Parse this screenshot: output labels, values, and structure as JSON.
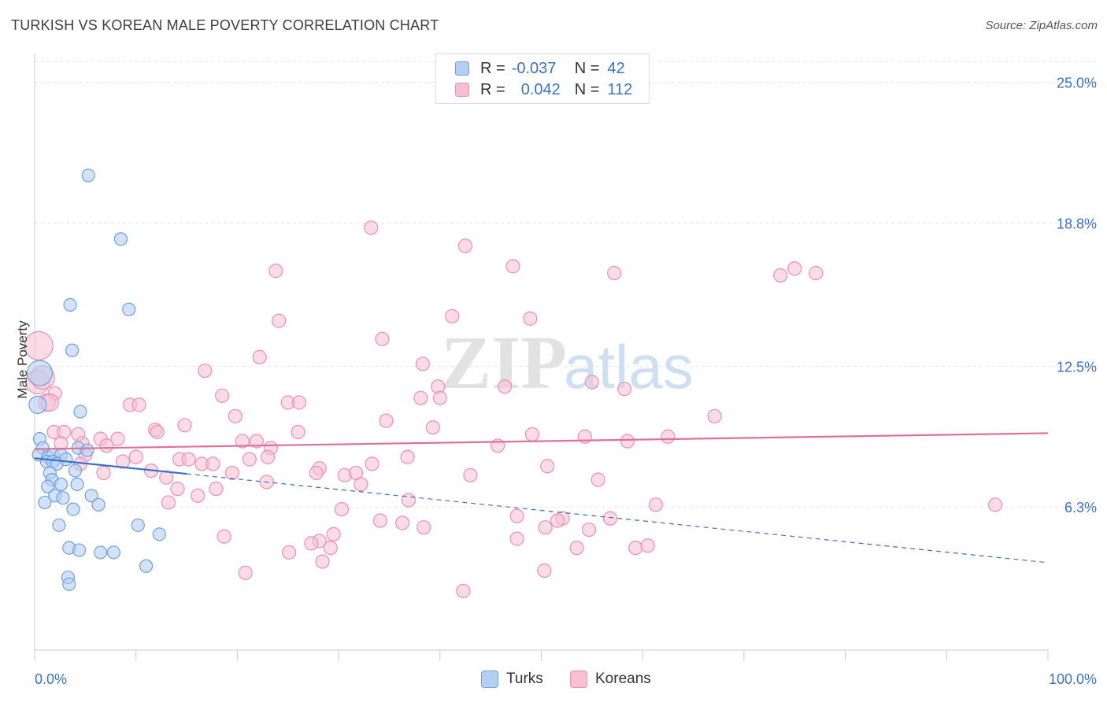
{
  "header": {
    "title": "TURKISH VS KOREAN MALE POVERTY CORRELATION CHART",
    "source": "Source: ZipAtlas.com"
  },
  "watermark": {
    "zip": "ZIP",
    "atlas": "atlas"
  },
  "stats": {
    "turks": {
      "r_label": "R =",
      "r_value": "-0.037",
      "n_label": "N =",
      "n_value": "42"
    },
    "koreans": {
      "r_label": "R =",
      "r_value": "0.042",
      "n_label": "N =",
      "n_value": "112"
    }
  },
  "legend": {
    "turks": "Turks",
    "koreans": "Koreans"
  },
  "colors": {
    "turks_fill": "#b5cff2",
    "turks_stroke": "#6f9fe0",
    "turks_line": "#3a6fcc",
    "koreans_fill": "#f7c0d2",
    "koreans_stroke": "#ea8fb0",
    "koreans_line": "#e0709a",
    "tick_label": "#3b72c8",
    "grid": "#e3e3e3"
  },
  "chart_data": {
    "type": "scatter",
    "title": "TURKISH VS KOREAN MALE POVERTY CORRELATION CHART",
    "xlabel": "",
    "ylabel": "Male Poverty",
    "xlim": [
      0,
      100
    ],
    "ylim": [
      0,
      26.2
    ],
    "x_tick_labels": [
      "0.0%",
      "100.0%"
    ],
    "y_ticks": [
      6.3,
      12.5,
      18.8,
      25.0
    ],
    "y_tick_labels": [
      "6.3%",
      "12.5%",
      "18.8%",
      "25.0%"
    ],
    "series": [
      {
        "name": "Turks",
        "points": [
          [
            5.3,
            20.9
          ],
          [
            8.5,
            18.1
          ],
          [
            3.5,
            15.2
          ],
          [
            9.3,
            15.0
          ],
          [
            3.7,
            13.2
          ],
          [
            0.5,
            12.2
          ],
          [
            0.3,
            10.8
          ],
          [
            4.5,
            10.5
          ],
          [
            0.5,
            9.3
          ],
          [
            0.8,
            8.9
          ],
          [
            0.4,
            8.6
          ],
          [
            1.3,
            8.5
          ],
          [
            1.8,
            8.6
          ],
          [
            2.6,
            8.6
          ],
          [
            1.2,
            8.3
          ],
          [
            1.8,
            8.3
          ],
          [
            2.2,
            8.2
          ],
          [
            3.1,
            8.4
          ],
          [
            4.3,
            8.9
          ],
          [
            5.2,
            8.8
          ],
          [
            1.5,
            7.8
          ],
          [
            1.7,
            7.5
          ],
          [
            4.0,
            7.9
          ],
          [
            1.3,
            7.2
          ],
          [
            2.6,
            7.3
          ],
          [
            4.2,
            7.3
          ],
          [
            2.0,
            6.8
          ],
          [
            2.8,
            6.7
          ],
          [
            5.6,
            6.8
          ],
          [
            1.0,
            6.5
          ],
          [
            3.8,
            6.2
          ],
          [
            6.3,
            6.4
          ],
          [
            2.4,
            5.5
          ],
          [
            10.2,
            5.5
          ],
          [
            12.3,
            5.1
          ],
          [
            3.4,
            4.5
          ],
          [
            4.4,
            4.4
          ],
          [
            6.5,
            4.3
          ],
          [
            7.8,
            4.3
          ],
          [
            11.0,
            3.7
          ],
          [
            3.3,
            3.2
          ],
          [
            3.4,
            2.9
          ]
        ]
      },
      {
        "name": "Koreans",
        "points": [
          [
            33.2,
            18.6
          ],
          [
            42.5,
            17.8
          ],
          [
            47.2,
            16.9
          ],
          [
            23.8,
            16.7
          ],
          [
            57.2,
            16.6
          ],
          [
            73.6,
            16.5
          ],
          [
            75.0,
            16.8
          ],
          [
            77.1,
            16.6
          ],
          [
            41.2,
            14.7
          ],
          [
            48.9,
            14.6
          ],
          [
            24.1,
            14.5
          ],
          [
            34.3,
            13.7
          ],
          [
            0.4,
            13.4
          ],
          [
            22.2,
            12.9
          ],
          [
            38.3,
            12.6
          ],
          [
            16.8,
            12.3
          ],
          [
            0.3,
            11.8
          ],
          [
            39.8,
            11.6
          ],
          [
            46.4,
            11.6
          ],
          [
            55.0,
            11.8
          ],
          [
            58.2,
            11.5
          ],
          [
            2.0,
            11.3
          ],
          [
            18.5,
            11.2
          ],
          [
            1.2,
            10.9
          ],
          [
            25.0,
            10.9
          ],
          [
            26.1,
            10.9
          ],
          [
            38.1,
            11.1
          ],
          [
            40.0,
            11.1
          ],
          [
            9.4,
            10.8
          ],
          [
            10.3,
            10.8
          ],
          [
            19.8,
            10.3
          ],
          [
            67.1,
            10.3
          ],
          [
            34.7,
            10.1
          ],
          [
            14.8,
            9.9
          ],
          [
            39.3,
            9.8
          ],
          [
            1.9,
            9.6
          ],
          [
            2.9,
            9.6
          ],
          [
            11.9,
            9.7
          ],
          [
            12.1,
            9.6
          ],
          [
            26.0,
            9.6
          ],
          [
            49.1,
            9.5
          ],
          [
            54.3,
            9.4
          ],
          [
            62.5,
            9.4
          ],
          [
            4.3,
            9.5
          ],
          [
            6.5,
            9.3
          ],
          [
            8.2,
            9.3
          ],
          [
            20.5,
            9.2
          ],
          [
            21.9,
            9.2
          ],
          [
            2.6,
            9.1
          ],
          [
            7.1,
            9.0
          ],
          [
            23.3,
            8.9
          ],
          [
            45.7,
            9.0
          ],
          [
            58.5,
            9.2
          ],
          [
            5.0,
            8.6
          ],
          [
            10.0,
            8.5
          ],
          [
            14.3,
            8.4
          ],
          [
            15.2,
            8.4
          ],
          [
            21.2,
            8.4
          ],
          [
            36.8,
            8.5
          ],
          [
            4.5,
            8.2
          ],
          [
            8.7,
            8.3
          ],
          [
            16.5,
            8.2
          ],
          [
            17.6,
            8.2
          ],
          [
            28.1,
            8.0
          ],
          [
            33.3,
            8.2
          ],
          [
            50.6,
            8.1
          ],
          [
            6.8,
            7.8
          ],
          [
            11.5,
            7.9
          ],
          [
            19.5,
            7.8
          ],
          [
            27.8,
            7.8
          ],
          [
            30.6,
            7.7
          ],
          [
            31.7,
            7.8
          ],
          [
            43.0,
            7.7
          ],
          [
            13.0,
            7.6
          ],
          [
            22.9,
            7.4
          ],
          [
            32.2,
            7.3
          ],
          [
            55.6,
            7.5
          ],
          [
            14.1,
            7.1
          ],
          [
            17.9,
            7.1
          ],
          [
            16.1,
            6.8
          ],
          [
            36.9,
            6.6
          ],
          [
            13.2,
            6.5
          ],
          [
            61.3,
            6.4
          ],
          [
            94.8,
            6.4
          ],
          [
            30.3,
            6.2
          ],
          [
            47.6,
            5.9
          ],
          [
            52.1,
            5.8
          ],
          [
            34.1,
            5.7
          ],
          [
            36.3,
            5.6
          ],
          [
            38.4,
            5.4
          ],
          [
            51.6,
            5.7
          ],
          [
            56.8,
            5.8
          ],
          [
            50.4,
            5.4
          ],
          [
            54.7,
            5.3
          ],
          [
            18.7,
            5.0
          ],
          [
            29.5,
            5.1
          ],
          [
            47.6,
            4.9
          ],
          [
            28.1,
            4.8
          ],
          [
            27.3,
            4.7
          ],
          [
            29.2,
            4.5
          ],
          [
            53.5,
            4.5
          ],
          [
            59.3,
            4.5
          ],
          [
            60.5,
            4.6
          ],
          [
            25.1,
            4.3
          ],
          [
            28.4,
            3.9
          ],
          [
            20.8,
            3.4
          ],
          [
            50.3,
            3.5
          ],
          [
            42.3,
            2.6
          ],
          [
            0.8,
            12.0
          ],
          [
            1.5,
            10.9
          ],
          [
            4.7,
            9.1
          ],
          [
            23.0,
            8.5
          ]
        ]
      }
    ],
    "trend_lines": [
      {
        "name": "Turks",
        "solid_x": [
          0,
          15
        ],
        "dashed_x": [
          15,
          100
        ],
        "y_at_0": 8.45,
        "y_at_100": 3.85
      },
      {
        "name": "Koreans",
        "x": [
          0,
          100
        ],
        "y_at_0": 8.85,
        "y_at_100": 9.55
      }
    ]
  }
}
